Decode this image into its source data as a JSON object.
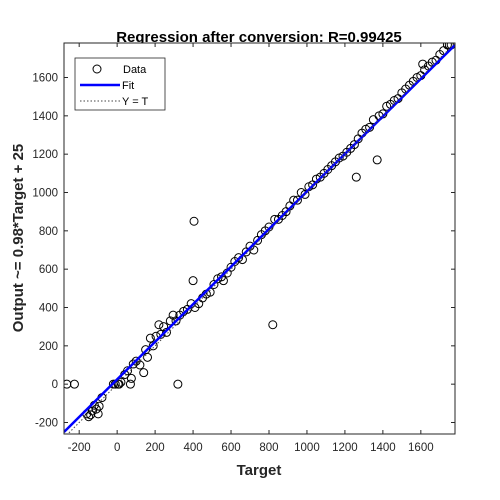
{
  "chart_data": {
    "type": "scatter",
    "title": "Regression after conversion: R=0.99425",
    "xlabel": "Target",
    "ylabel": "Output ~= 0.98*Target + 25",
    "xlim": [
      -280,
      1780
    ],
    "ylim": [
      -260,
      1780
    ],
    "xticks": [
      -200,
      0,
      200,
      400,
      600,
      800,
      1000,
      1200,
      1400,
      1600
    ],
    "yticks": [
      -200,
      0,
      200,
      400,
      600,
      800,
      1000,
      1200,
      1400,
      1600
    ],
    "xtick_labels": [
      "-200",
      "0",
      "200",
      "400",
      "600",
      "800",
      "1000",
      "1200",
      "1400",
      "1600"
    ],
    "ytick_labels": [
      "-200",
      "0",
      "200",
      "400",
      "600",
      "800",
      "1000",
      "1200",
      "1400",
      "1600"
    ],
    "grid": false,
    "legend_position": "top-left",
    "legend": [
      {
        "label": "Data",
        "style": "circle-marker"
      },
      {
        "label": "Fit",
        "style": "solid-line"
      },
      {
        "label": "Y = T",
        "style": "dotted-line"
      }
    ],
    "fit": {
      "slope": 0.98,
      "intercept": 25,
      "color": "#0000ff"
    },
    "identity_line": {
      "color": "#444444"
    },
    "marker_color": "#000000",
    "series": [
      {
        "name": "Data",
        "points": [
          [
            -265,
            0
          ],
          [
            -225,
            0
          ],
          [
            -160,
            -155
          ],
          [
            -150,
            -170
          ],
          [
            -140,
            -160
          ],
          [
            -130,
            -140
          ],
          [
            -120,
            -110
          ],
          [
            -110,
            -130
          ],
          [
            -100,
            -155
          ],
          [
            -95,
            -115
          ],
          [
            -80,
            -70
          ],
          [
            -20,
            0
          ],
          [
            -10,
            0
          ],
          [
            5,
            0
          ],
          [
            20,
            10
          ],
          [
            10,
            0
          ],
          [
            40,
            50
          ],
          [
            55,
            70
          ],
          [
            70,
            0
          ],
          [
            75,
            30
          ],
          [
            85,
            105
          ],
          [
            100,
            120
          ],
          [
            120,
            100
          ],
          [
            140,
            60
          ],
          [
            150,
            180
          ],
          [
            160,
            140
          ],
          [
            175,
            240
          ],
          [
            190,
            200
          ],
          [
            205,
            250
          ],
          [
            220,
            310
          ],
          [
            230,
            260
          ],
          [
            245,
            300
          ],
          [
            260,
            270
          ],
          [
            280,
            330
          ],
          [
            295,
            360
          ],
          [
            310,
            330
          ],
          [
            320,
            0
          ],
          [
            330,
            360
          ],
          [
            350,
            380
          ],
          [
            370,
            390
          ],
          [
            390,
            420
          ],
          [
            400,
            540
          ],
          [
            405,
            850
          ],
          [
            410,
            400
          ],
          [
            430,
            420
          ],
          [
            450,
            450
          ],
          [
            470,
            470
          ],
          [
            490,
            480
          ],
          [
            510,
            520
          ],
          [
            530,
            550
          ],
          [
            550,
            560
          ],
          [
            560,
            540
          ],
          [
            580,
            580
          ],
          [
            600,
            610
          ],
          [
            620,
            640
          ],
          [
            640,
            660
          ],
          [
            660,
            650
          ],
          [
            680,
            690
          ],
          [
            700,
            720
          ],
          [
            720,
            700
          ],
          [
            740,
            750
          ],
          [
            760,
            780
          ],
          [
            780,
            800
          ],
          [
            800,
            820
          ],
          [
            820,
            310
          ],
          [
            830,
            860
          ],
          [
            850,
            860
          ],
          [
            870,
            880
          ],
          [
            890,
            900
          ],
          [
            910,
            930
          ],
          [
            930,
            960
          ],
          [
            950,
            960
          ],
          [
            970,
            1000
          ],
          [
            990,
            990
          ],
          [
            1010,
            1030
          ],
          [
            1030,
            1040
          ],
          [
            1050,
            1070
          ],
          [
            1070,
            1080
          ],
          [
            1090,
            1100
          ],
          [
            1110,
            1120
          ],
          [
            1130,
            1140
          ],
          [
            1150,
            1160
          ],
          [
            1170,
            1180
          ],
          [
            1190,
            1190
          ],
          [
            1210,
            1210
          ],
          [
            1230,
            1230
          ],
          [
            1250,
            1250
          ],
          [
            1260,
            1080
          ],
          [
            1270,
            1280
          ],
          [
            1290,
            1310
          ],
          [
            1310,
            1330
          ],
          [
            1330,
            1340
          ],
          [
            1350,
            1380
          ],
          [
            1370,
            1170
          ],
          [
            1380,
            1400
          ],
          [
            1400,
            1410
          ],
          [
            1420,
            1450
          ],
          [
            1440,
            1460
          ],
          [
            1460,
            1480
          ],
          [
            1480,
            1490
          ],
          [
            1500,
            1520
          ],
          [
            1520,
            1540
          ],
          [
            1540,
            1560
          ],
          [
            1560,
            1580
          ],
          [
            1580,
            1600
          ],
          [
            1600,
            1610
          ],
          [
            1610,
            1670
          ],
          [
            1620,
            1640
          ],
          [
            1640,
            1660
          ],
          [
            1660,
            1680
          ],
          [
            1680,
            1690
          ],
          [
            1700,
            1720
          ],
          [
            1720,
            1740
          ],
          [
            1740,
            1770
          ],
          [
            1750,
            1770
          ],
          [
            1760,
            1770
          ]
        ]
      }
    ]
  }
}
